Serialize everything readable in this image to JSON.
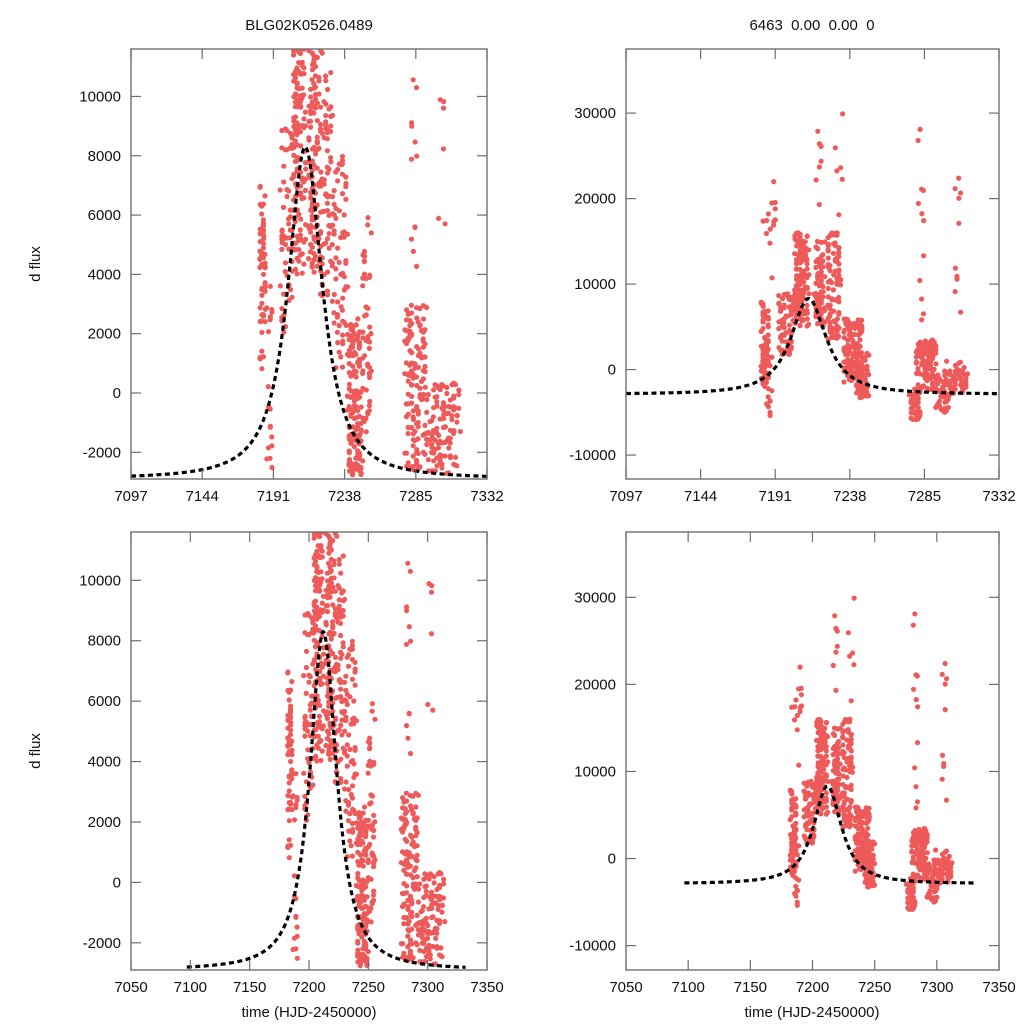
{
  "figure": {
    "left_title": "BLG02K0526.0489",
    "right_title": "6463  0.00  0.00  0",
    "ylabel": "d flux",
    "xlabel": "time (HJD-2450000)",
    "point_color": "#ee5a5a",
    "model_color": "#000000"
  },
  "chart_data": [
    {
      "id": "top-left",
      "type": "scatter",
      "title": "BLG02K0526.0489",
      "xlabel": "",
      "ylabel": "d flux",
      "xlim": [
        7097,
        7332
      ],
      "ylim": [
        -2900,
        11600
      ],
      "xticks": [
        7097,
        7144,
        7191,
        7238,
        7285,
        7332
      ],
      "xtick_labels": [
        "7097",
        "7144",
        "7191",
        "7238",
        "7285",
        "7332"
      ],
      "yticks": [
        -2000,
        0,
        2000,
        4000,
        6000,
        8000,
        10000
      ],
      "ytick_labels": [
        "-2000",
        "0",
        "2000",
        "4000",
        "6000",
        "8000",
        "10000"
      ],
      "model": {
        "t0": 7212,
        "peak": 8300,
        "baseline": -2900,
        "width": 14
      },
      "grid": false
    },
    {
      "id": "top-right",
      "type": "scatter",
      "title": "6463  0.00  0.00  0",
      "xlabel": "",
      "ylabel": "",
      "xlim": [
        7097,
        7332
      ],
      "ylim": [
        -12800,
        37500
      ],
      "xticks": [
        7097,
        7144,
        7191,
        7238,
        7285,
        7332
      ],
      "xtick_labels": [
        "7097",
        "7144",
        "7191",
        "7238",
        "7285",
        "7332"
      ],
      "yticks": [
        -10000,
        0,
        10000,
        20000,
        30000
      ],
      "ytick_labels": [
        "-10000",
        "0",
        "10000",
        "20000",
        "30000"
      ],
      "model": {
        "t0": 7212,
        "peak": 8300,
        "baseline": -2900,
        "width": 14
      },
      "grid": false
    },
    {
      "id": "bottom-left",
      "type": "scatter",
      "title": "",
      "xlabel": "time (HJD-2450000)",
      "ylabel": "d flux",
      "xlim": [
        7050,
        7350
      ],
      "ylim": [
        -2900,
        11600
      ],
      "xticks": [
        7050,
        7100,
        7150,
        7200,
        7250,
        7300,
        7350
      ],
      "xtick_labels": [
        "7050",
        "7100",
        "7150",
        "7200",
        "7250",
        "7300",
        "7350"
      ],
      "yticks": [
        -2000,
        0,
        2000,
        4000,
        6000,
        8000,
        10000
      ],
      "ytick_labels": [
        "-2000",
        "0",
        "2000",
        "4000",
        "6000",
        "8000",
        "10000"
      ],
      "model": {
        "t0": 7212,
        "peak": 8300,
        "baseline": -2900,
        "width": 14,
        "t_start": 7097,
        "t_end": 7332
      },
      "grid": false
    },
    {
      "id": "bottom-right",
      "type": "scatter",
      "title": "",
      "xlabel": "time (HJD-2450000)",
      "ylabel": "",
      "xlim": [
        7050,
        7350
      ],
      "ylim": [
        -12800,
        37500
      ],
      "xticks": [
        7050,
        7100,
        7150,
        7200,
        7250,
        7300,
        7350
      ],
      "xtick_labels": [
        "7050",
        "7100",
        "7150",
        "7200",
        "7250",
        "7300",
        "7350"
      ],
      "yticks": [
        -10000,
        0,
        10000,
        20000,
        30000
      ],
      "ytick_labels": [
        "-10000",
        "0",
        "10000",
        "20000",
        "30000"
      ],
      "model": {
        "t0": 7212,
        "peak": 8300,
        "baseline": -2900,
        "width": 14,
        "t_start": 7097,
        "t_end": 7332
      },
      "grid": false
    }
  ],
  "observations": {
    "description": "Approximate photometric point clusters (time range, flux centre, flux spread, count) read from the scatter",
    "left_panels": [
      {
        "t": [
          7182,
          7186
        ],
        "flux": [
          800,
          7000
        ],
        "n": 55
      },
      {
        "t": [
          7186,
          7190
        ],
        "flux": [
          -2600,
          4000
        ],
        "n": 20
      },
      {
        "t": [
          7196,
          7204
        ],
        "flux": [
          2000,
          9000
        ],
        "n": 60
      },
      {
        "t": [
          7204,
          7212
        ],
        "flux": [
          4000,
          11600
        ],
        "n": 120
      },
      {
        "t": [
          7214,
          7222
        ],
        "flux": [
          4000,
          11600
        ],
        "n": 110
      },
      {
        "t": [
          7222,
          7230
        ],
        "flux": [
          3000,
          11600
        ],
        "n": 70
      },
      {
        "t": [
          7230,
          7240
        ],
        "flux": [
          800,
          8000
        ],
        "n": 70
      },
      {
        "t": [
          7240,
          7250
        ],
        "flux": [
          -2800,
          2500
        ],
        "n": 150
      },
      {
        "t": [
          7250,
          7256
        ],
        "flux": [
          -1500,
          6000
        ],
        "n": 45
      },
      {
        "t": [
          7278,
          7292
        ],
        "flux": [
          -2600,
          3000
        ],
        "n": 130
      },
      {
        "t": [
          7281,
          7286
        ],
        "flux": [
          4000,
          11400
        ],
        "n": 12
      },
      {
        "t": [
          7292,
          7314
        ],
        "flux": [
          -2800,
          400
        ],
        "n": 110
      },
      {
        "t": [
          7300,
          7306
        ],
        "flux": [
          3000,
          11200
        ],
        "n": 6
      }
    ],
    "right_panels": [
      {
        "t": [
          7182,
          7187
        ],
        "flux": [
          -2000,
          8000
        ],
        "n": 80
      },
      {
        "t": [
          7185,
          7189
        ],
        "flux": [
          -6500,
          2000
        ],
        "n": 18
      },
      {
        "t": [
          7182,
          7192
        ],
        "flux": [
          10000,
          22000
        ],
        "n": 14
      },
      {
        "t": [
          7193,
          7202
        ],
        "flux": [
          1500,
          9000
        ],
        "n": 70
      },
      {
        "t": [
          7203,
          7212
        ],
        "flux": [
          5000,
          16000
        ],
        "n": 130
      },
      {
        "t": [
          7216,
          7222
        ],
        "flux": [
          5000,
          15000
        ],
        "n": 80
      },
      {
        "t": [
          7216,
          7220
        ],
        "flux": [
          17000,
          29500
        ],
        "n": 8
      },
      {
        "t": [
          7224,
          7232
        ],
        "flux": [
          3500,
          16000
        ],
        "n": 90
      },
      {
        "t": [
          7228,
          7234
        ],
        "flux": [
          18000,
          31500
        ],
        "n": 6
      },
      {
        "t": [
          7234,
          7246
        ],
        "flux": [
          -1500,
          6000
        ],
        "n": 120
      },
      {
        "t": [
          7242,
          7250
        ],
        "flux": [
          -3500,
          2000
        ],
        "n": 60
      },
      {
        "t": [
          7276,
          7282
        ],
        "flux": [
          -6000,
          -2000
        ],
        "n": 40
      },
      {
        "t": [
          7280,
          7292
        ],
        "flux": [
          -2500,
          3500
        ],
        "n": 110
      },
      {
        "t": [
          7281,
          7285
        ],
        "flux": [
          5000,
          29000
        ],
        "n": 12
      },
      {
        "t": [
          7292,
          7300
        ],
        "flux": [
          -5000,
          -500
        ],
        "n": 40
      },
      {
        "t": [
          7298,
          7312
        ],
        "flux": [
          -3000,
          1000
        ],
        "n": 60
      },
      {
        "t": [
          7304,
          7308
        ],
        "flux": [
          4000,
          24000
        ],
        "n": 10
      }
    ]
  }
}
